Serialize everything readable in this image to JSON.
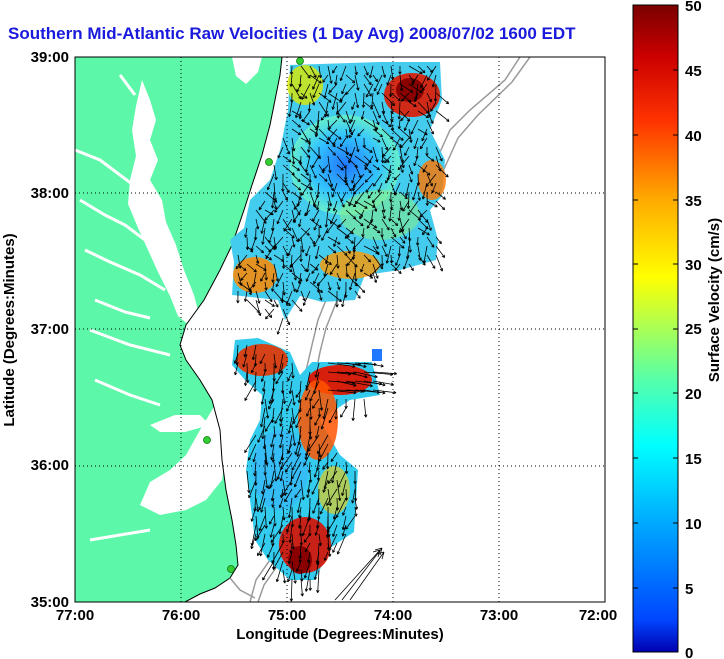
{
  "title": "Southern Mid-Atlantic Raw Velocities (1 Day Avg) 2008/07/02 1600 EDT",
  "xlabel": "Longitude (Degrees:Minutes)",
  "ylabel": "Latitude (Degrees:Minutes)",
  "xticks": [
    "77:00",
    "76:00",
    "75:00",
    "74:00",
    "73:00",
    "72:00"
  ],
  "yticks": [
    "39:00",
    "38:00",
    "37:00",
    "36:00",
    "35:00"
  ],
  "colorbar": {
    "label": "Surface Velocity (cm/s)",
    "ticks": [
      "0",
      "5",
      "10",
      "15",
      "20",
      "25",
      "30",
      "35",
      "40",
      "45",
      "50"
    ],
    "min": 0,
    "max": 50
  },
  "colors": {
    "land": "#5cf7a8",
    "title": "#1a1adc",
    "station": "#33cc33"
  }
}
